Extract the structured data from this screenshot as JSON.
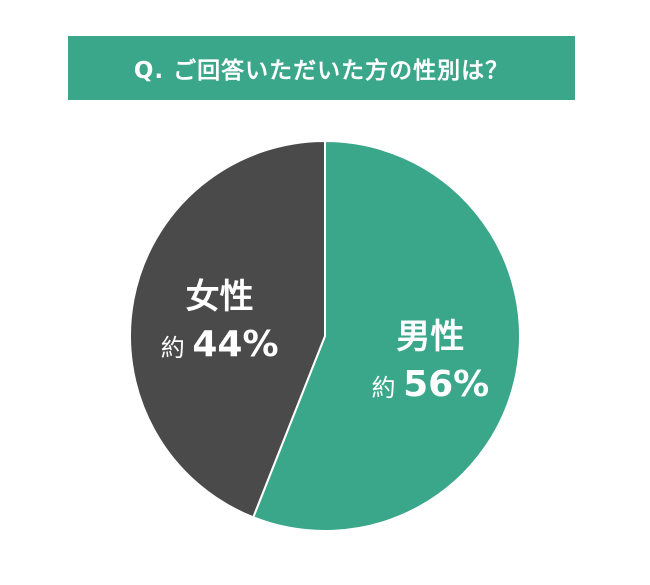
{
  "chart_data": {
    "type": "pie",
    "title": "Q. ご回答いただいた方の性別は？",
    "slices": [
      {
        "name": "男性",
        "value": 56,
        "label": "約",
        "value_label": "56%",
        "color": "#3aa68a"
      },
      {
        "name": "女性",
        "value": 44,
        "label": "約",
        "value_label": "44%",
        "color": "#4a4a4a"
      }
    ],
    "start": "top",
    "direction": "clockwise",
    "legend": "none"
  }
}
